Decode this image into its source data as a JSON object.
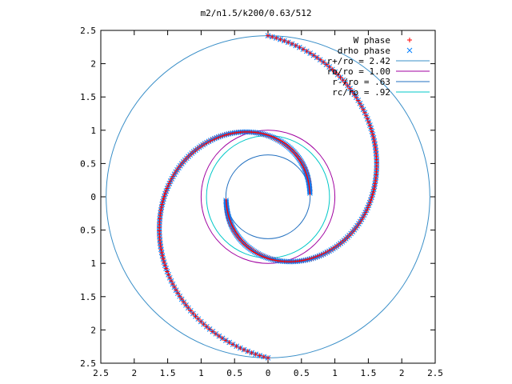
{
  "chart_data": {
    "type": "scatter",
    "title": "m2/n1.5/k200/0.63/512",
    "xlim": [
      -2.5,
      2.5
    ],
    "ylim": [
      -2.5,
      2.5
    ],
    "x_ticks": [
      -2.5,
      -2,
      -1.5,
      -1,
      -0.5,
      0,
      0.5,
      1,
      1.5,
      2,
      2.5
    ],
    "x_tick_labels": [
      "2.5",
      "2",
      "1.5",
      "1",
      "0.5",
      "0",
      "0.5",
      "1",
      "1.5",
      "2",
      "2.5"
    ],
    "y_ticks": [
      2.5,
      2,
      1.5,
      1,
      0.5,
      0,
      -0.5,
      -1,
      -1.5,
      -2,
      -2.5
    ],
    "y_tick_labels": [
      "2.5",
      "2",
      "1.5",
      "1",
      "0.5",
      "0",
      "0.5",
      "1",
      "1.5",
      "2",
      "2.5"
    ],
    "grid": false,
    "legend_position": "top-right",
    "legend": [
      {
        "label": "W phase",
        "marker": "plus",
        "color": "#ff0000"
      },
      {
        "label": "drho phase",
        "marker": "cross",
        "color": "#0080ff"
      },
      {
        "label": "r+/ro = 2.42",
        "line": true,
        "color": "#3a8fc8"
      },
      {
        "label": "ro/ro = 1.00",
        "line": true,
        "color": "#a000a0"
      },
      {
        "label": "r-/ro = .63",
        "line": true,
        "color": "#2270c0"
      },
      {
        "label": "rc/ro = .92",
        "line": true,
        "color": "#00c8c8"
      }
    ],
    "circles": [
      {
        "radius": 2.42,
        "color": "#3a8fc8"
      },
      {
        "radius": 1.0,
        "color": "#a000a0"
      },
      {
        "radius": 0.63,
        "color": "#2270c0"
      },
      {
        "radius": 0.92,
        "color": "#00c8c8"
      }
    ],
    "spiral_arms": [
      {
        "angle_offset_deg": 0,
        "r_start": 0.63,
        "r_end": 2.42,
        "theta_start_deg": 5,
        "theta_span_deg": 265
      },
      {
        "angle_offset_deg": 180,
        "r_start": 0.63,
        "r_end": 2.42,
        "theta_start_deg": 5,
        "theta_span_deg": 265
      }
    ],
    "series": [
      {
        "name": "W phase",
        "marker": "plus",
        "color": "#ff0000"
      },
      {
        "name": "drho phase",
        "marker": "cross",
        "color": "#0080ff"
      }
    ]
  }
}
